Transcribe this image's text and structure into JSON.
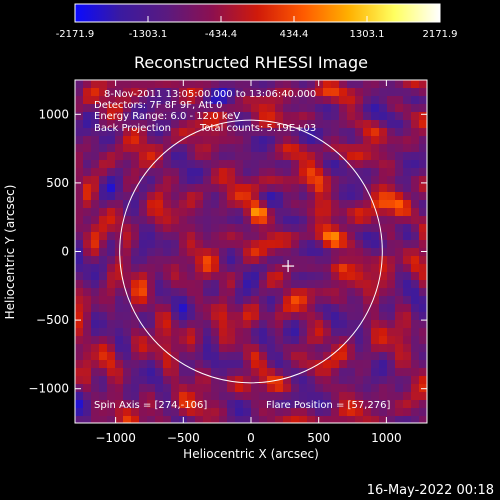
{
  "colorbar": {
    "ticks": [
      "-2171.9",
      "-1303.1",
      "-434.4",
      "434.4",
      "1303.1",
      "2171.9"
    ],
    "tick_values": [
      -2171.9,
      -1303.1,
      -434.4,
      434.4,
      1303.1,
      2171.9
    ],
    "range": [
      -2171.9,
      2171.9
    ],
    "colors": [
      "#0a0aff",
      "#3a1aa0",
      "#5a1a80",
      "#8c1050",
      "#d01a0a",
      "#ff5a00",
      "#ffb000",
      "#ffff60",
      "#ffffff"
    ]
  },
  "chart_data": {
    "type": "heatmap",
    "title": "Reconstructed RHESSI Image",
    "xlabel": "Heliocentric X (arcsec)",
    "ylabel": "Heliocentric Y (arcsec)",
    "xlim": [
      -1300,
      1300
    ],
    "ylim": [
      -1250,
      1250
    ],
    "xticks": [
      -1000,
      -500,
      0,
      500,
      1000
    ],
    "yticks": [
      -1000,
      -500,
      0,
      500,
      1000
    ],
    "xtick_labels": [
      "−1000",
      "−500",
      "0",
      "500",
      "1000"
    ],
    "ytick_labels": [
      "−1000",
      "−500",
      "0",
      "500",
      "1000"
    ],
    "solar_limb_radius": 970,
    "flare_marker": [
      274,
      -106
    ],
    "hot_sources": [
      {
        "x": 50,
        "y": 300,
        "level": 1.0
      },
      {
        "x": 940,
        "y": 330,
        "level": 0.95
      },
      {
        "x": 490,
        "y": 450,
        "level": 0.75
      },
      {
        "x": 600,
        "y": 80,
        "level": 0.6
      },
      {
        "x": -280,
        "y": 120,
        "level": 0.55
      },
      {
        "x": 650,
        "y": -120,
        "level": 0.6
      },
      {
        "x": 1000,
        "y": -70,
        "level": 0.55
      }
    ],
    "annotations": [
      "8-Nov-2011 13:05:00.000 to 13:06:40.000",
      "Detectors: 7F 8F 9F, Att 0",
      "Energy Range: 6.0 - 12.0 keV",
      "Back Projection",
      "Total counts: 5.19E+03"
    ],
    "footer_left": "Spin Axis = [274,-106]",
    "footer_right": "Flare Position = [57,276]"
  },
  "timestamp": "16-May-2022 00:18"
}
